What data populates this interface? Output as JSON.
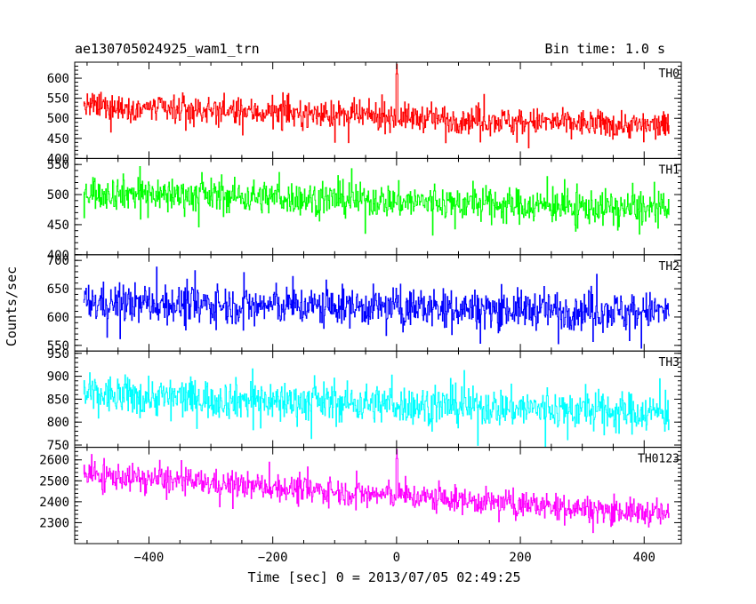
{
  "chart_data": {
    "type": "line",
    "title": "ae130705024925_wam1_trn",
    "bin_time_label": "Bin time: 1.0 s",
    "xlabel": "Time [sec] 0 = 2013/07/05 02:49:25",
    "ylabel": "Counts/sec",
    "xlim": [
      -520,
      460
    ],
    "data_x_range": [
      -505,
      440
    ],
    "x_ticks": [
      -400,
      -200,
      0,
      200,
      400
    ],
    "panels": [
      {
        "name": "TH0",
        "color": "#ff0000",
        "ylim": [
          400,
          640
        ],
        "yticks": [
          400,
          450,
          500,
          550,
          600
        ],
        "trend": [
          530,
          480
        ],
        "noise": 30,
        "features": [
          {
            "x": 0,
            "y": 635
          }
        ]
      },
      {
        "name": "TH1",
        "color": "#00ff00",
        "ylim": [
          400,
          560
        ],
        "yticks": [
          400,
          450,
          500,
          550
        ],
        "trend": [
          505,
          475
        ],
        "noise": 25,
        "features": []
      },
      {
        "name": "TH2",
        "color": "#0000ff",
        "ylim": [
          540,
          710
        ],
        "yticks": [
          550,
          600,
          650,
          700
        ],
        "trend": [
          625,
          610
        ],
        "noise": 30,
        "features": []
      },
      {
        "name": "TH3",
        "color": "#00ffff",
        "ylim": [
          745,
          955
        ],
        "yticks": [
          750,
          800,
          850,
          900,
          950
        ],
        "trend": [
          860,
          820
        ],
        "noise": 38,
        "features": []
      },
      {
        "name": "TH0123",
        "color": "#ff00ff",
        "ylim": [
          2200,
          2660
        ],
        "yticks": [
          2300,
          2400,
          2500,
          2600
        ],
        "trend": [
          2530,
          2340
        ],
        "noise": 55,
        "features": [
          {
            "x": 0,
            "y": 2650
          }
        ]
      }
    ]
  }
}
